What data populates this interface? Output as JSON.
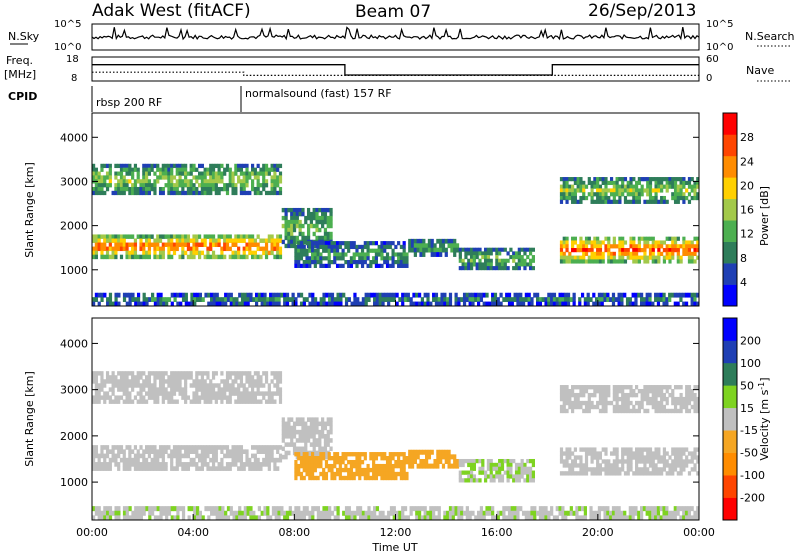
{
  "header": {
    "station": "Adak West (fitACF)",
    "beam": "Beam 07",
    "date": "26/Sep/2013"
  },
  "noise_panel": {
    "left_label": "N.Sky",
    "right_label": "N.Search",
    "left_ticks": [
      "10^5",
      "10^0"
    ],
    "right_ticks": [
      "10^5",
      "10^0"
    ]
  },
  "freq_panel": {
    "left_label": "Freq.",
    "left_unit": "[MHz]",
    "right_label": "Nave",
    "left_ticks": [
      "18",
      "8"
    ],
    "right_ticks": [
      "60",
      "0"
    ],
    "freq_steps": [
      {
        "t_start": 0.0,
        "t_end": 10.0,
        "value": 14.8
      },
      {
        "t_start": 10.0,
        "t_end": 18.2,
        "value": 10.5
      },
      {
        "t_start": 18.2,
        "t_end": 24.0,
        "value": 14.8
      }
    ],
    "nave_steps": [
      {
        "t_start": 0.0,
        "t_end": 6.0,
        "value": 22
      },
      {
        "t_start": 6.0,
        "t_end": 24.0,
        "value": 14
      }
    ]
  },
  "cpid": {
    "label": "CPID",
    "segments": [
      {
        "t_start": 0.0,
        "text": "rbsp 200 RF"
      },
      {
        "t_start": 6.0,
        "text": "normalsound (fast) 157 RF"
      }
    ]
  },
  "chart_data": [
    {
      "type": "heatmap",
      "quantity": "Power",
      "ylabel": "Slant Range [km]",
      "xlabel": "Time UT",
      "x_range_hours": [
        0,
        24
      ],
      "ylim_km": [
        180,
        4550
      ],
      "yticks": [
        "4000",
        "3000",
        "2000",
        "1000"
      ],
      "ytick_values": [
        4000,
        3000,
        2000,
        1000
      ],
      "xticks": [
        "00:00",
        "04:00",
        "08:00",
        "12:00",
        "16:00",
        "20:00",
        "00:00"
      ],
      "colorbar": {
        "label": "Power [dB]",
        "ticks": [
          "28",
          "24",
          "20",
          "16",
          "12",
          "8",
          "4"
        ],
        "range": [
          0,
          30
        ],
        "colors": [
          "#0000ff",
          "#1f3fb4",
          "#2e7d5a",
          "#4caf50",
          "#a3c94a",
          "#ffd000",
          "#ff8c00",
          "#ff4500",
          "#ff0000"
        ]
      },
      "regions": [
        {
          "t_start": 0.0,
          "t_end": 7.5,
          "r_min": 1250,
          "r_max": 1800,
          "level": 27
        },
        {
          "t_start": 7.5,
          "t_end": 9.5,
          "r_min": 1500,
          "r_max": 2400,
          "level": 14
        },
        {
          "t_start": 0.0,
          "t_end": 7.5,
          "r_min": 2700,
          "r_max": 3400,
          "level": 16
        },
        {
          "t_start": 8.0,
          "t_end": 12.5,
          "r_min": 1050,
          "r_max": 1650,
          "level": 11
        },
        {
          "t_start": 12.5,
          "t_end": 14.5,
          "r_min": 1300,
          "r_max": 1700,
          "level": 13
        },
        {
          "t_start": 14.5,
          "t_end": 17.5,
          "r_min": 1000,
          "r_max": 1500,
          "level": 14
        },
        {
          "t_start": 18.5,
          "t_end": 24.0,
          "r_min": 1150,
          "r_max": 1750,
          "level": 27
        },
        {
          "t_start": 18.5,
          "t_end": 24.0,
          "r_min": 2500,
          "r_max": 3100,
          "level": 16
        },
        {
          "t_start": 0.0,
          "t_end": 24.0,
          "r_min": 180,
          "r_max": 480,
          "level": 10
        }
      ]
    },
    {
      "type": "heatmap",
      "quantity": "Velocity",
      "ylabel": "Slant Range [km]",
      "xlabel": "Time UT",
      "x_range_hours": [
        0,
        24
      ],
      "ylim_km": [
        180,
        4550
      ],
      "yticks": [
        "4000",
        "3000",
        "2000",
        "1000"
      ],
      "ytick_values": [
        4000,
        3000,
        2000,
        1000
      ],
      "xticks": [
        "00:00",
        "04:00",
        "08:00",
        "12:00",
        "16:00",
        "20:00",
        "00:00"
      ],
      "colorbar": {
        "label": "Velocity [m s^-1]",
        "ticks": [
          "200",
          "100",
          "50",
          "15",
          "-15",
          "-50",
          "-100",
          "-200"
        ],
        "range": [
          -250,
          250
        ],
        "colors": [
          "#ff0000",
          "#ff4500",
          "#ff8c00",
          "#f5a623",
          "#c0c0c0",
          "#7ed321",
          "#2e7d5a",
          "#1f3fb4",
          "#0000ff"
        ]
      },
      "regions": [
        {
          "t_start": 0.0,
          "t_end": 7.5,
          "r_min": 1250,
          "r_max": 1800,
          "level": 0
        },
        {
          "t_start": 7.5,
          "t_end": 9.5,
          "r_min": 1500,
          "r_max": 2400,
          "level": 0
        },
        {
          "t_start": 0.0,
          "t_end": 7.5,
          "r_min": 2700,
          "r_max": 3400,
          "level": 0
        },
        {
          "t_start": 8.0,
          "t_end": 12.5,
          "r_min": 1050,
          "r_max": 1650,
          "level": -60
        },
        {
          "t_start": 12.5,
          "t_end": 14.5,
          "r_min": 1300,
          "r_max": 1700,
          "level": -60
        },
        {
          "t_start": 14.5,
          "t_end": 17.5,
          "r_min": 1000,
          "r_max": 1500,
          "level": 25
        },
        {
          "t_start": 18.5,
          "t_end": 24.0,
          "r_min": 1150,
          "r_max": 1750,
          "level": 0
        },
        {
          "t_start": 18.5,
          "t_end": 24.0,
          "r_min": 2500,
          "r_max": 3100,
          "level": 0
        },
        {
          "t_start": 0.0,
          "t_end": 24.0,
          "r_min": 180,
          "r_max": 480,
          "level": 20
        }
      ]
    }
  ]
}
